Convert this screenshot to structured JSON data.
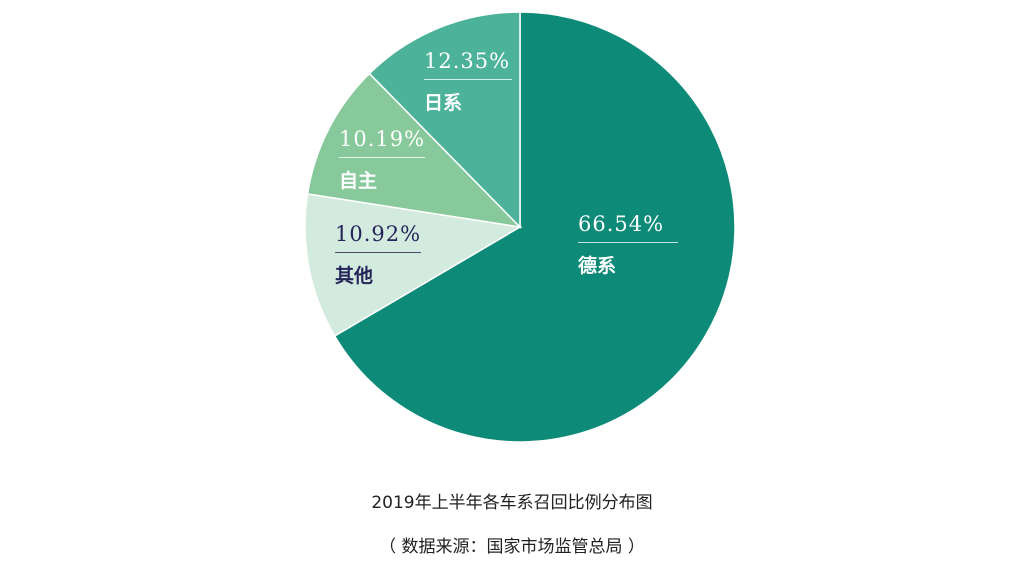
{
  "chart_data": {
    "type": "pie",
    "title": "2019年上半年各车系召回比例分布图",
    "subtitle": "（ 数据来源：国家市场监管总局 ）",
    "slices": [
      {
        "label": "德系",
        "value": 66.54,
        "display": "66.54%",
        "color": "#0e8a78"
      },
      {
        "label": "其他",
        "value": 10.92,
        "display": "10.92%",
        "color": "#d3eadf"
      },
      {
        "label": "自主",
        "value": 10.19,
        "display": "10.19%",
        "color": "#87c99b"
      },
      {
        "label": "日系",
        "value": 12.35,
        "display": "12.35%",
        "color": "#4cb39a"
      }
    ],
    "start_angle": "top",
    "direction": "clockwise"
  }
}
